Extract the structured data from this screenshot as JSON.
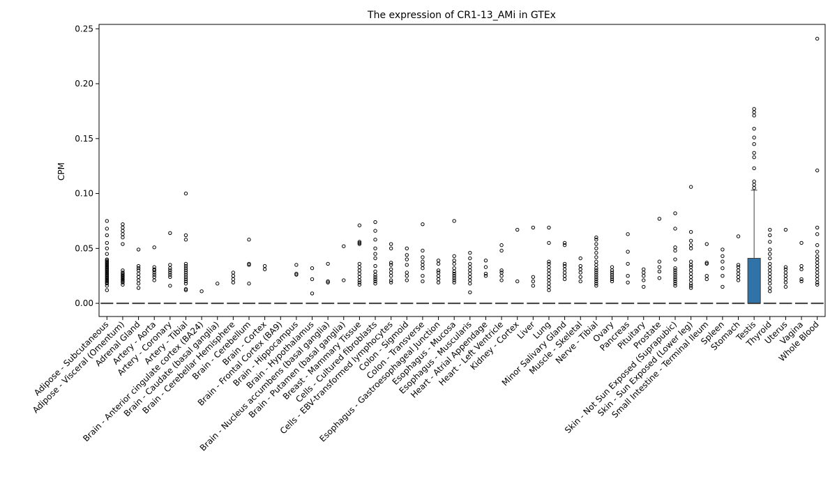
{
  "chart_data": {
    "type": "box",
    "title": "The expression of CR1-13_AMi in GTEx",
    "xlabel": "",
    "ylabel": "CPM",
    "ylim": [
      -0.012,
      0.254
    ],
    "yticks": [
      "0.00",
      "0.05",
      "0.10",
      "0.15",
      "0.20",
      "0.25"
    ],
    "ytick_values": [
      0,
      0.05,
      0.1,
      0.15,
      0.2,
      0.25
    ],
    "box_color": "#2f73a8",
    "categories": [
      "Adipose - Subcutaneous",
      "Adipose - Visceral (Omentum)",
      "Adrenal Gland",
      "Artery - Aorta",
      "Artery - Coronary",
      "Artery - Tibial",
      "Brain - Anterior cingulate cortex (BA24)",
      "Brain - Caudate (basal ganglia)",
      "Brain - Cerebellar Hemisphere",
      "Brain - Cerebellum",
      "Brain - Cortex",
      "Brain - Frontal Cortex (BA9)",
      "Brain - Hippocampus",
      "Brain - Hypothalamus",
      "Brain - Nucleus accumbens (basal ganglia)",
      "Brain - Putamen (basal ganglia)",
      "Breast - Mammary Tissue",
      "Cells - Cultured fibroblasts",
      "Cells - EBV-transformed lymphocytes",
      "Colon - Sigmoid",
      "Colon - Transverse",
      "Esophagus - Gastroesophageal Junction",
      "Esophagus - Mucosa",
      "Esophagus - Muscularis",
      "Heart - Atrial Appendage",
      "Heart - Left Ventricle",
      "Kidney - Cortex",
      "Liver",
      "Lung",
      "Minor Salivary Gland",
      "Muscle - Skeletal",
      "Nerve - Tibial",
      "Ovary",
      "Pancreas",
      "Pituitary",
      "Prostate",
      "Skin - Not Sun Exposed (Suprapubic)",
      "Skin - Sun Exposed (Lower leg)",
      "Small Intestine - Terminal Ileum",
      "Spleen",
      "Stomach",
      "Testis",
      "Thyroid",
      "Uterus",
      "Vagina",
      "Whole Blood"
    ],
    "boxes": [
      {
        "q1": 0,
        "median": 0,
        "q3": 0,
        "whisker_low": 0,
        "whisker_high": 0
      },
      {
        "q1": 0,
        "median": 0,
        "q3": 0,
        "whisker_low": 0,
        "whisker_high": 0
      },
      {
        "q1": 0,
        "median": 0,
        "q3": 0,
        "whisker_low": 0,
        "whisker_high": 0
      },
      {
        "q1": 0,
        "median": 0,
        "q3": 0,
        "whisker_low": 0,
        "whisker_high": 0
      },
      {
        "q1": 0,
        "median": 0,
        "q3": 0,
        "whisker_low": 0,
        "whisker_high": 0
      },
      {
        "q1": 0,
        "median": 0,
        "q3": 0,
        "whisker_low": 0,
        "whisker_high": 0
      },
      {
        "q1": 0,
        "median": 0,
        "q3": 0,
        "whisker_low": 0,
        "whisker_high": 0
      },
      {
        "q1": 0,
        "median": 0,
        "q3": 0,
        "whisker_low": 0,
        "whisker_high": 0
      },
      {
        "q1": 0,
        "median": 0,
        "q3": 0,
        "whisker_low": 0,
        "whisker_high": 0
      },
      {
        "q1": 0,
        "median": 0,
        "q3": 0,
        "whisker_low": 0,
        "whisker_high": 0
      },
      {
        "q1": 0,
        "median": 0,
        "q3": 0,
        "whisker_low": 0,
        "whisker_high": 0
      },
      {
        "q1": 0,
        "median": 0,
        "q3": 0,
        "whisker_low": 0,
        "whisker_high": 0
      },
      {
        "q1": 0,
        "median": 0,
        "q3": 0,
        "whisker_low": 0,
        "whisker_high": 0
      },
      {
        "q1": 0,
        "median": 0,
        "q3": 0,
        "whisker_low": 0,
        "whisker_high": 0
      },
      {
        "q1": 0,
        "median": 0,
        "q3": 0,
        "whisker_low": 0,
        "whisker_high": 0
      },
      {
        "q1": 0,
        "median": 0,
        "q3": 0,
        "whisker_low": 0,
        "whisker_high": 0
      },
      {
        "q1": 0,
        "median": 0,
        "q3": 0,
        "whisker_low": 0,
        "whisker_high": 0
      },
      {
        "q1": 0,
        "median": 0,
        "q3": 0,
        "whisker_low": 0,
        "whisker_high": 0
      },
      {
        "q1": 0,
        "median": 0,
        "q3": 0,
        "whisker_low": 0,
        "whisker_high": 0
      },
      {
        "q1": 0,
        "median": 0,
        "q3": 0,
        "whisker_low": 0,
        "whisker_high": 0
      },
      {
        "q1": 0,
        "median": 0,
        "q3": 0,
        "whisker_low": 0,
        "whisker_high": 0
      },
      {
        "q1": 0,
        "median": 0,
        "q3": 0,
        "whisker_low": 0,
        "whisker_high": 0
      },
      {
        "q1": 0,
        "median": 0,
        "q3": 0,
        "whisker_low": 0,
        "whisker_high": 0
      },
      {
        "q1": 0,
        "median": 0,
        "q3": 0,
        "whisker_low": 0,
        "whisker_high": 0
      },
      {
        "q1": 0,
        "median": 0,
        "q3": 0,
        "whisker_low": 0,
        "whisker_high": 0
      },
      {
        "q1": 0,
        "median": 0,
        "q3": 0,
        "whisker_low": 0,
        "whisker_high": 0
      },
      {
        "q1": 0,
        "median": 0,
        "q3": 0,
        "whisker_low": 0,
        "whisker_high": 0
      },
      {
        "q1": 0,
        "median": 0,
        "q3": 0,
        "whisker_low": 0,
        "whisker_high": 0
      },
      {
        "q1": 0,
        "median": 0,
        "q3": 0,
        "whisker_low": 0,
        "whisker_high": 0
      },
      {
        "q1": 0,
        "median": 0,
        "q3": 0,
        "whisker_low": 0,
        "whisker_high": 0
      },
      {
        "q1": 0,
        "median": 0,
        "q3": 0,
        "whisker_low": 0,
        "whisker_high": 0
      },
      {
        "q1": 0,
        "median": 0,
        "q3": 0,
        "whisker_low": 0,
        "whisker_high": 0
      },
      {
        "q1": 0,
        "median": 0,
        "q3": 0,
        "whisker_low": 0,
        "whisker_high": 0
      },
      {
        "q1": 0,
        "median": 0,
        "q3": 0,
        "whisker_low": 0,
        "whisker_high": 0
      },
      {
        "q1": 0,
        "median": 0,
        "q3": 0,
        "whisker_low": 0,
        "whisker_high": 0
      },
      {
        "q1": 0,
        "median": 0,
        "q3": 0,
        "whisker_low": 0,
        "whisker_high": 0
      },
      {
        "q1": 0,
        "median": 0,
        "q3": 0,
        "whisker_low": 0,
        "whisker_high": 0
      },
      {
        "q1": 0,
        "median": 0,
        "q3": 0,
        "whisker_low": 0,
        "whisker_high": 0
      },
      {
        "q1": 0,
        "median": 0,
        "q3": 0,
        "whisker_low": 0,
        "whisker_high": 0
      },
      {
        "q1": 0,
        "median": 0,
        "q3": 0,
        "whisker_low": 0,
        "whisker_high": 0
      },
      {
        "q1": 0,
        "median": 0,
        "q3": 0,
        "whisker_low": 0,
        "whisker_high": 0
      },
      {
        "q1": 0,
        "median": 0,
        "q3": 0.041,
        "whisker_low": 0,
        "whisker_high": 0.103
      },
      {
        "q1": 0,
        "median": 0,
        "q3": 0,
        "whisker_low": 0,
        "whisker_high": 0
      },
      {
        "q1": 0,
        "median": 0,
        "q3": 0,
        "whisker_low": 0,
        "whisker_high": 0
      },
      {
        "q1": 0,
        "median": 0,
        "q3": 0,
        "whisker_low": 0,
        "whisker_high": 0
      },
      {
        "q1": 0,
        "median": 0,
        "q3": 0,
        "whisker_low": 0,
        "whisker_high": 0
      }
    ],
    "outliers": [
      [
        0.012,
        0.016,
        0.018,
        0.019,
        0.02,
        0.021,
        0.022,
        0.023,
        0.024,
        0.025,
        0.026,
        0.027,
        0.028,
        0.029,
        0.03,
        0.031,
        0.032,
        0.033,
        0.034,
        0.035,
        0.036,
        0.037,
        0.038,
        0.039,
        0.04,
        0.045,
        0.05,
        0.055,
        0.062,
        0.068,
        0.075
      ],
      [
        0.017,
        0.019,
        0.02,
        0.021,
        0.022,
        0.023,
        0.024,
        0.025,
        0.026,
        0.027,
        0.028,
        0.03,
        0.054,
        0.06,
        0.063,
        0.066,
        0.069,
        0.072
      ],
      [
        0.014,
        0.018,
        0.021,
        0.024,
        0.027,
        0.03,
        0.032,
        0.034,
        0.049
      ],
      [
        0.021,
        0.024,
        0.026,
        0.028,
        0.03,
        0.031,
        0.033,
        0.051
      ],
      [
        0.016,
        0.024,
        0.026,
        0.028,
        0.03,
        0.032,
        0.035,
        0.064
      ],
      [
        0.012,
        0.013,
        0.018,
        0.02,
        0.022,
        0.024,
        0.026,
        0.028,
        0.03,
        0.032,
        0.034,
        0.036,
        0.058,
        0.062,
        0.1
      ],
      [
        0.011
      ],
      [
        0.018
      ],
      [
        0.019,
        0.022,
        0.025,
        0.028
      ],
      [
        0.018,
        0.035,
        0.036,
        0.058
      ],
      [
        0.031,
        0.034
      ],
      [],
      [
        0.026,
        0.027,
        0.035
      ],
      [
        0.009,
        0.022,
        0.032
      ],
      [
        0.019,
        0.02,
        0.036
      ],
      [
        0.021,
        0.052
      ],
      [
        0.017,
        0.019,
        0.021,
        0.024,
        0.027,
        0.03,
        0.033,
        0.036,
        0.054,
        0.055,
        0.056,
        0.071
      ],
      [
        0.018,
        0.02,
        0.022,
        0.024,
        0.026,
        0.029,
        0.034,
        0.041,
        0.045,
        0.05,
        0.058,
        0.066,
        0.074
      ],
      [
        0.019,
        0.021,
        0.025,
        0.028,
        0.031,
        0.035,
        0.037,
        0.05,
        0.054
      ],
      [
        0.021,
        0.025,
        0.028,
        0.035,
        0.04,
        0.044,
        0.05
      ],
      [
        0.02,
        0.025,
        0.032,
        0.035,
        0.038,
        0.042,
        0.048,
        0.072
      ],
      [
        0.019,
        0.022,
        0.025,
        0.028,
        0.03,
        0.036,
        0.039
      ],
      [
        0.019,
        0.021,
        0.023,
        0.025,
        0.027,
        0.029,
        0.032,
        0.036,
        0.039,
        0.043,
        0.075
      ],
      [
        0.01,
        0.018,
        0.021,
        0.024,
        0.027,
        0.03,
        0.033,
        0.036,
        0.041,
        0.046
      ],
      [
        0.025,
        0.027,
        0.033,
        0.039
      ],
      [
        0.021,
        0.025,
        0.028,
        0.03,
        0.048,
        0.053
      ],
      [
        0.02,
        0.067
      ],
      [
        0.016,
        0.02,
        0.024,
        0.069
      ],
      [
        0.012,
        0.015,
        0.018,
        0.021,
        0.024,
        0.027,
        0.03,
        0.033,
        0.036,
        0.038,
        0.055,
        0.069
      ],
      [
        0.022,
        0.025,
        0.028,
        0.031,
        0.034,
        0.036,
        0.053,
        0.055
      ],
      [
        0.02,
        0.024,
        0.028,
        0.031,
        0.034,
        0.041
      ],
      [
        0.016,
        0.018,
        0.02,
        0.022,
        0.024,
        0.026,
        0.028,
        0.03,
        0.032,
        0.035,
        0.038,
        0.042,
        0.046,
        0.05,
        0.054,
        0.058,
        0.06
      ],
      [
        0.02,
        0.022,
        0.024,
        0.026,
        0.028,
        0.03,
        0.033
      ],
      [
        0.019,
        0.025,
        0.036,
        0.047,
        0.063
      ],
      [
        0.015,
        0.021,
        0.025,
        0.028,
        0.031
      ],
      [
        0.023,
        0.029,
        0.033,
        0.038,
        0.077
      ],
      [
        0.016,
        0.018,
        0.02,
        0.022,
        0.024,
        0.026,
        0.028,
        0.03,
        0.032,
        0.04,
        0.048,
        0.051,
        0.068,
        0.082
      ],
      [
        0.014,
        0.016,
        0.018,
        0.021,
        0.024,
        0.027,
        0.03,
        0.033,
        0.035,
        0.038,
        0.05,
        0.053,
        0.057,
        0.065,
        0.106
      ],
      [
        0.022,
        0.025,
        0.036,
        0.037,
        0.054
      ],
      [
        0.015,
        0.025,
        0.032,
        0.038,
        0.043,
        0.049
      ],
      [
        0.021,
        0.024,
        0.027,
        0.03,
        0.033,
        0.035,
        0.061
      ],
      [
        0.105,
        0.108,
        0.111,
        0.123,
        0.133,
        0.137,
        0.145,
        0.151,
        0.159,
        0.171,
        0.174,
        0.177
      ],
      [
        0.011,
        0.014,
        0.018,
        0.021,
        0.024,
        0.027,
        0.03,
        0.033,
        0.036,
        0.041,
        0.045,
        0.049,
        0.056,
        0.062,
        0.067
      ],
      [
        0.015,
        0.019,
        0.022,
        0.025,
        0.028,
        0.031,
        0.033,
        0.067
      ],
      [
        0.02,
        0.022,
        0.031,
        0.034,
        0.055
      ],
      [
        0.017,
        0.019,
        0.022,
        0.025,
        0.028,
        0.031,
        0.034,
        0.037,
        0.04,
        0.043,
        0.047,
        0.053,
        0.063,
        0.069,
        0.121,
        0.241
      ]
    ]
  }
}
